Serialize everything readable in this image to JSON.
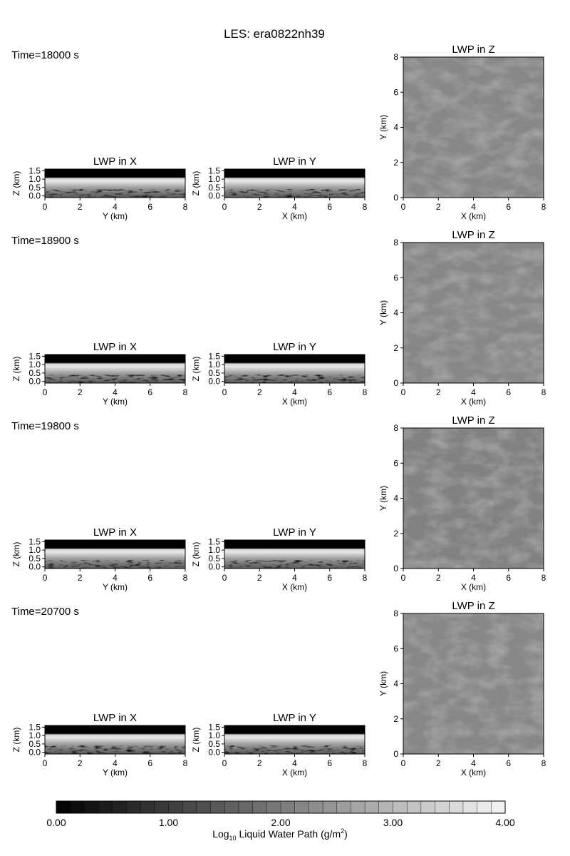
{
  "title": "LES: era0822nh39",
  "panel_titles": {
    "x": "LWP in X",
    "y": "LWP in Y",
    "z": "LWP in Z"
  },
  "axis_labels": {
    "x_km": "X (km)",
    "y_km": "Y (km)",
    "z_km": "Z (km)"
  },
  "chart_data": {
    "type": "heatmap",
    "snapshots": [
      {
        "time_label": "Time=18000 s",
        "z_mean_log10": 2.2
      },
      {
        "time_label": "Time=18900 s",
        "z_mean_log10": 2.2
      },
      {
        "time_label": "Time=19800 s",
        "z_mean_log10": 2.1
      },
      {
        "time_label": "Time=20700 s",
        "z_mean_log10": 2.2
      }
    ],
    "xz_yz_panels": {
      "horizontal_range_km": [
        0,
        8
      ],
      "horizontal_ticks": [
        "0",
        "2",
        "4",
        "6",
        "8"
      ],
      "z_range_km": [
        -0.1,
        1.6
      ],
      "z_ticks": [
        "0.0",
        "0.5",
        "1.0",
        "1.5"
      ],
      "cloud_top_km": 1.0,
      "cloud_top_log10": 3.6
    },
    "xy_panel": {
      "x_range_km": [
        0,
        8
      ],
      "y_range_km": [
        0,
        8
      ],
      "ticks": [
        "0",
        "2",
        "4",
        "6",
        "8"
      ]
    },
    "colorbar": {
      "range": [
        0,
        4
      ],
      "levels": 32,
      "tick_labels": [
        "0.00",
        "1.00",
        "2.00",
        "3.00",
        "4.00"
      ],
      "label_main": "Log",
      "label_sub": "10",
      "label_rest": " Liquid Water Path (g/m",
      "label_sup": "2",
      "label_end": ")"
    }
  }
}
